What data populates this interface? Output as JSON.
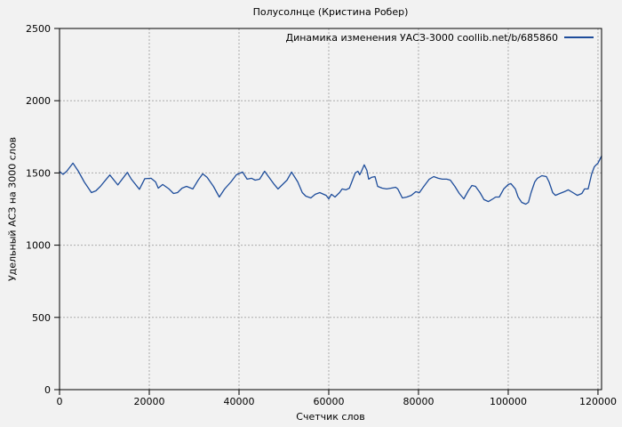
{
  "title": "Полусолнце (Кристина Робер)",
  "chart_data": {
    "type": "line",
    "title": "Полусолнце (Кристина Робер)",
    "xlabel": "Счетчик слов",
    "ylabel": "Удельный АСЗ на 3000 слов",
    "legend": "Динамика изменения УАСЗ-3000 coollib.net/b/685860",
    "legend_position": "top-right-inside",
    "grid": true,
    "xlim": [
      0,
      120800
    ],
    "ylim": [
      0,
      2500
    ],
    "x_ticks": [
      0,
      20000,
      40000,
      60000,
      80000,
      100000,
      120000
    ],
    "y_ticks": [
      0,
      500,
      1000,
      1500,
      2000,
      2500
    ],
    "colors": {
      "line": "#1e4d9b",
      "background": "#f2f2f2",
      "grid": "#ababab",
      "border": "#000000"
    },
    "series": [
      {
        "name": "Динамика изменения УАСЗ-3000 coollib.net/b/685860",
        "points": [
          [
            0,
            1510
          ],
          [
            800,
            1490
          ],
          [
            1600,
            1512
          ],
          [
            3000,
            1568
          ],
          [
            4200,
            1512
          ],
          [
            5500,
            1438
          ],
          [
            7100,
            1364
          ],
          [
            8100,
            1376
          ],
          [
            9100,
            1407
          ],
          [
            10300,
            1452
          ],
          [
            11200,
            1486
          ],
          [
            13000,
            1417
          ],
          [
            15100,
            1504
          ],
          [
            16000,
            1457
          ],
          [
            17800,
            1387
          ],
          [
            19000,
            1460
          ],
          [
            20400,
            1463
          ],
          [
            21400,
            1438
          ],
          [
            22000,
            1395
          ],
          [
            23000,
            1420
          ],
          [
            24400,
            1389
          ],
          [
            25400,
            1358
          ],
          [
            26300,
            1364
          ],
          [
            27300,
            1395
          ],
          [
            28300,
            1407
          ],
          [
            29700,
            1389
          ],
          [
            30900,
            1450
          ],
          [
            31900,
            1494
          ],
          [
            32900,
            1469
          ],
          [
            34300,
            1407
          ],
          [
            35600,
            1333
          ],
          [
            36800,
            1389
          ],
          [
            38200,
            1438
          ],
          [
            39400,
            1487
          ],
          [
            40800,
            1506
          ],
          [
            41800,
            1457
          ],
          [
            42800,
            1463
          ],
          [
            43600,
            1450
          ],
          [
            44600,
            1457
          ],
          [
            45700,
            1512
          ],
          [
            46700,
            1469
          ],
          [
            47700,
            1426
          ],
          [
            48700,
            1389
          ],
          [
            49700,
            1420
          ],
          [
            50700,
            1450
          ],
          [
            51700,
            1506
          ],
          [
            53100,
            1438
          ],
          [
            54100,
            1364
          ],
          [
            54900,
            1339
          ],
          [
            56000,
            1327
          ],
          [
            57000,
            1352
          ],
          [
            58000,
            1364
          ],
          [
            59400,
            1345
          ],
          [
            60000,
            1321
          ],
          [
            60600,
            1352
          ],
          [
            61400,
            1333
          ],
          [
            62400,
            1364
          ],
          [
            63000,
            1389
          ],
          [
            63800,
            1383
          ],
          [
            64600,
            1395
          ],
          [
            65300,
            1450
          ],
          [
            65900,
            1500
          ],
          [
            66500,
            1512
          ],
          [
            66900,
            1487
          ],
          [
            67300,
            1512
          ],
          [
            67900,
            1556
          ],
          [
            68500,
            1518
          ],
          [
            68900,
            1457
          ],
          [
            69500,
            1469
          ],
          [
            70300,
            1475
          ],
          [
            70900,
            1407
          ],
          [
            71900,
            1395
          ],
          [
            72900,
            1389
          ],
          [
            73900,
            1395
          ],
          [
            74900,
            1401
          ],
          [
            75400,
            1389
          ],
          [
            76400,
            1327
          ],
          [
            77400,
            1333
          ],
          [
            78400,
            1345
          ],
          [
            79400,
            1370
          ],
          [
            80200,
            1364
          ],
          [
            81200,
            1407
          ],
          [
            82400,
            1457
          ],
          [
            83400,
            1475
          ],
          [
            84400,
            1463
          ],
          [
            85300,
            1457
          ],
          [
            86300,
            1457
          ],
          [
            87100,
            1450
          ],
          [
            88100,
            1407
          ],
          [
            89100,
            1358
          ],
          [
            90100,
            1321
          ],
          [
            91100,
            1376
          ],
          [
            91900,
            1413
          ],
          [
            92700,
            1407
          ],
          [
            93700,
            1364
          ],
          [
            94600,
            1315
          ],
          [
            95600,
            1302
          ],
          [
            96600,
            1321
          ],
          [
            97200,
            1333
          ],
          [
            98000,
            1333
          ],
          [
            99000,
            1389
          ],
          [
            100000,
            1420
          ],
          [
            100600,
            1426
          ],
          [
            101600,
            1389
          ],
          [
            102200,
            1333
          ],
          [
            103000,
            1296
          ],
          [
            103900,
            1284
          ],
          [
            104500,
            1296
          ],
          [
            105100,
            1364
          ],
          [
            105900,
            1438
          ],
          [
            106500,
            1463
          ],
          [
            107500,
            1481
          ],
          [
            108500,
            1475
          ],
          [
            109100,
            1438
          ],
          [
            109900,
            1364
          ],
          [
            110500,
            1345
          ],
          [
            111500,
            1358
          ],
          [
            112500,
            1370
          ],
          [
            113400,
            1383
          ],
          [
            114400,
            1364
          ],
          [
            115400,
            1345
          ],
          [
            116400,
            1358
          ],
          [
            117000,
            1389
          ],
          [
            117800,
            1389
          ],
          [
            118600,
            1494
          ],
          [
            119200,
            1543
          ],
          [
            119600,
            1556
          ],
          [
            120000,
            1568
          ],
          [
            120400,
            1593
          ],
          [
            120800,
            1617
          ]
        ]
      }
    ]
  }
}
